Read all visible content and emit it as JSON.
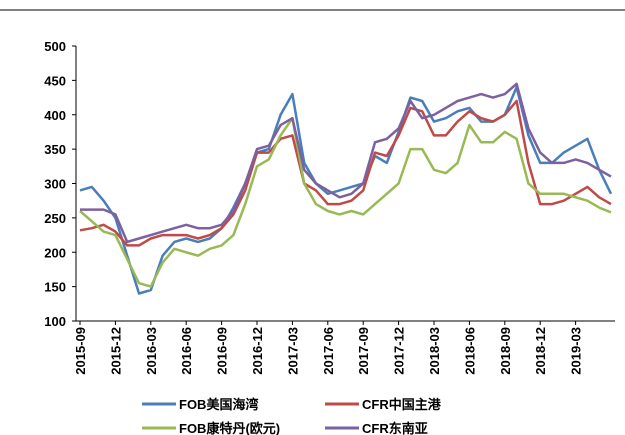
{
  "chart_data": {
    "type": "line",
    "categories": [
      "2015-09",
      null,
      null,
      "2015-12",
      null,
      null,
      "2016-03",
      null,
      null,
      "2016-06",
      null,
      null,
      "2016-09",
      null,
      null,
      "2016-12",
      null,
      null,
      "2017-03",
      null,
      null,
      "2017-06",
      null,
      null,
      "2017-09",
      null,
      null,
      "2017-12",
      null,
      null,
      "2018-03",
      null,
      null,
      "2018-06",
      null,
      null,
      "2018-09",
      null,
      null,
      "2018-12",
      null,
      null,
      "2019-03",
      null,
      null,
      null
    ],
    "series": [
      {
        "name": "FOB美国海湾",
        "color": "#4a7ebb",
        "values": [
          290,
          295,
          275,
          250,
          195,
          140,
          145,
          195,
          215,
          220,
          215,
          220,
          235,
          265,
          300,
          345,
          350,
          400,
          430,
          330,
          300,
          285,
          290,
          295,
          300,
          340,
          330,
          375,
          425,
          420,
          390,
          395,
          405,
          410,
          390,
          390,
          400,
          440,
          370,
          330,
          330,
          345,
          355,
          365,
          320,
          285
        ]
      },
      {
        "name": "CFR中国主港",
        "color": "#be4b48",
        "values": [
          232,
          235,
          240,
          230,
          210,
          210,
          220,
          225,
          225,
          225,
          220,
          225,
          235,
          255,
          290,
          345,
          345,
          365,
          370,
          300,
          290,
          270,
          270,
          275,
          290,
          345,
          340,
          370,
          410,
          405,
          370,
          370,
          390,
          405,
          395,
          390,
          400,
          420,
          330,
          270,
          270,
          275,
          285,
          295,
          280,
          270
        ]
      },
      {
        "name": "FOB康特丹(欧元)",
        "color": "#98b954",
        "values": [
          260,
          245,
          230,
          225,
          190,
          155,
          150,
          185,
          205,
          200,
          195,
          205,
          210,
          225,
          270,
          325,
          335,
          370,
          395,
          300,
          270,
          260,
          255,
          260,
          255,
          270,
          285,
          300,
          350,
          350,
          320,
          315,
          330,
          385,
          360,
          360,
          375,
          365,
          300,
          285,
          285,
          285,
          280,
          275,
          265,
          258
        ]
      },
      {
        "name": "CFR东南亚",
        "color": "#7d60a0",
        "values": [
          262,
          262,
          262,
          255,
          215,
          220,
          225,
          230,
          235,
          240,
          235,
          235,
          240,
          260,
          300,
          350,
          355,
          385,
          395,
          320,
          300,
          290,
          280,
          285,
          300,
          360,
          365,
          380,
          420,
          395,
          400,
          410,
          420,
          425,
          430,
          425,
          430,
          445,
          380,
          345,
          330,
          330,
          335,
          330,
          320,
          310
        ]
      }
    ],
    "ylim": [
      100,
      500
    ],
    "yticks": [
      100,
      150,
      200,
      250,
      300,
      350,
      400,
      450,
      500
    ],
    "grid": false,
    "legend": "bottom"
  }
}
